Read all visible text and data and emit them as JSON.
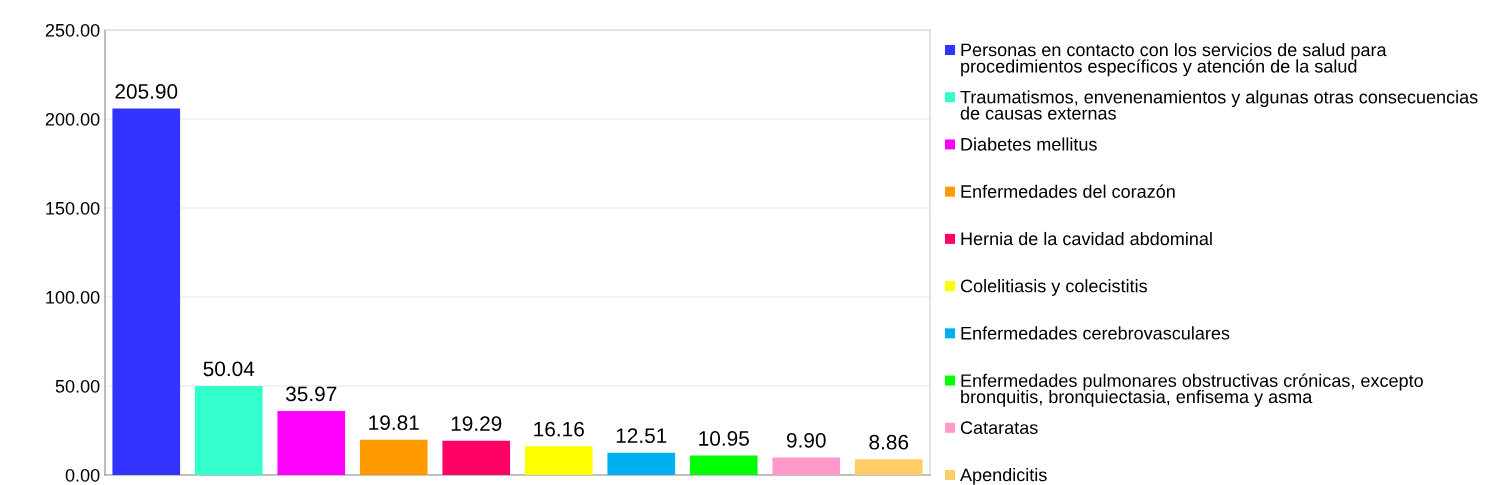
{
  "chart_data": {
    "type": "bar",
    "categories": [
      null,
      null,
      null,
      null,
      null,
      null,
      null,
      null,
      null,
      null
    ],
    "series": [
      {
        "name": "Personas en contacto con los servicios de salud para procedimientos específicos y atención de la salud",
        "color": "#3333ff",
        "values": [
          205.9,
          null,
          null,
          null,
          null,
          null,
          null,
          null,
          null,
          null
        ],
        "value_labels": [
          "205.90",
          null,
          null,
          null,
          null,
          null,
          null,
          null,
          null,
          null
        ]
      },
      {
        "name": "Traumatismos, envenenamientos y algunas otras consecuencias de causas externas",
        "color": "#33ffcc",
        "values": [
          null,
          50.04,
          null,
          null,
          null,
          null,
          null,
          null,
          null,
          null
        ],
        "value_labels": [
          null,
          "50.04",
          null,
          null,
          null,
          null,
          null,
          null,
          null,
          null
        ]
      },
      {
        "name": "Diabetes mellitus",
        "color": "#ff00ff",
        "values": [
          null,
          null,
          35.97,
          null,
          null,
          null,
          null,
          null,
          null,
          null
        ],
        "value_labels": [
          null,
          null,
          "35.97",
          null,
          null,
          null,
          null,
          null,
          null,
          null
        ]
      },
      {
        "name": "Enfermedades del corazón",
        "color": "#ff9900",
        "values": [
          null,
          null,
          null,
          19.81,
          null,
          null,
          null,
          null,
          null,
          null
        ],
        "value_labels": [
          null,
          null,
          null,
          "19.81",
          null,
          null,
          null,
          null,
          null,
          null
        ]
      },
      {
        "name": "Hernia de la cavidad abdominal",
        "color": "#ff0066",
        "values": [
          null,
          null,
          null,
          null,
          19.29,
          null,
          null,
          null,
          null,
          null
        ],
        "value_labels": [
          null,
          null,
          null,
          null,
          "19.29",
          null,
          null,
          null,
          null,
          null
        ]
      },
      {
        "name": "Colelitiasis y colecistitis",
        "color": "#ffff00",
        "values": [
          null,
          null,
          null,
          null,
          null,
          16.16,
          null,
          null,
          null,
          null
        ],
        "value_labels": [
          null,
          null,
          null,
          null,
          null,
          "16.16",
          null,
          null,
          null,
          null
        ]
      },
      {
        "name": "Enfermedades cerebrovasculares",
        "color": "#00b0f0",
        "values": [
          null,
          null,
          null,
          null,
          null,
          null,
          12.51,
          null,
          null,
          null
        ],
        "value_labels": [
          null,
          null,
          null,
          null,
          null,
          null,
          "12.51",
          null,
          null,
          null
        ]
      },
      {
        "name": "Enfermedades pulmonares obstructivas crónicas, excepto bronquitis, bronquiectasia, enfisema y asma",
        "color": "#00ff00",
        "values": [
          null,
          null,
          null,
          null,
          null,
          null,
          null,
          10.95,
          null,
          null
        ],
        "value_labels": [
          null,
          null,
          null,
          null,
          null,
          null,
          null,
          "10.95",
          null,
          null
        ]
      },
      {
        "name": "Cataratas",
        "color": "#ff99cc",
        "values": [
          null,
          null,
          null,
          null,
          null,
          null,
          null,
          null,
          9.9,
          null
        ],
        "value_labels": [
          null,
          null,
          null,
          null,
          null,
          null,
          null,
          null,
          "9.90",
          null
        ]
      },
      {
        "name": "Apendicitis",
        "color": "#ffcc66",
        "values": [
          null,
          null,
          null,
          null,
          null,
          null,
          null,
          null,
          null,
          8.86
        ],
        "value_labels": [
          null,
          null,
          null,
          null,
          null,
          null,
          null,
          null,
          null,
          "8.86"
        ]
      }
    ],
    "ylim": [
      0,
      250
    ],
    "yticks": [
      {
        "value": 0,
        "label": "0.00"
      },
      {
        "value": 50,
        "label": "50.00"
      },
      {
        "value": 100,
        "label": "100.00"
      },
      {
        "value": 150,
        "label": "150.00"
      },
      {
        "value": 200,
        "label": "200.00"
      },
      {
        "value": 250,
        "label": "250.00"
      }
    ],
    "grid": "y",
    "legend": "right"
  }
}
